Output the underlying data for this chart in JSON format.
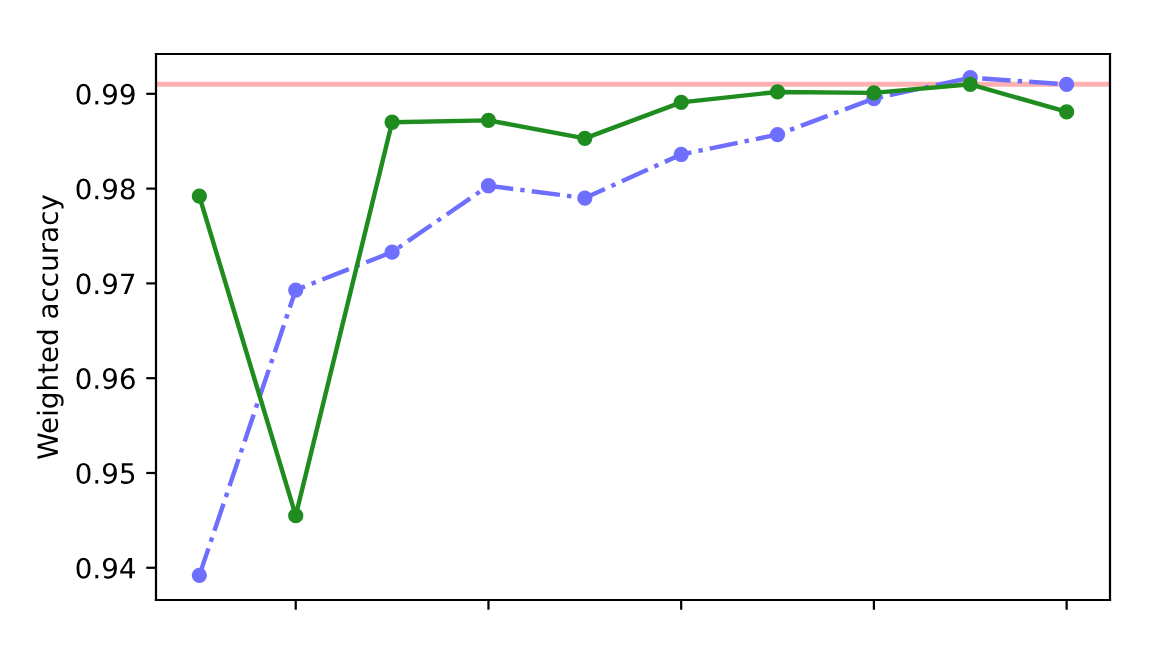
{
  "chart_data": {
    "type": "line",
    "ylabel": "Weighted accuracy",
    "categories": [
      null,
      null,
      null,
      null,
      null,
      null,
      null,
      null,
      null,
      null
    ],
    "series": [
      {
        "color": "#6f6fff",
        "line_style": "dashdot",
        "values": [
          0.9392,
          0.9693,
          0.9733,
          0.9803,
          0.979,
          0.9836,
          0.9857,
          0.9895,
          0.9917,
          0.991
        ]
      },
      {
        "color": "#1f8c1f",
        "line_style": "solid",
        "values": [
          0.9792,
          0.9455,
          0.987,
          0.9872,
          0.9853,
          0.9891,
          0.9902,
          0.9901,
          0.991,
          0.9881
        ]
      }
    ],
    "marker": "circle",
    "ref_lines": [
      {
        "axis": "y",
        "value": 0.991,
        "label": null,
        "color": "#ffb0b0",
        "line_style": "solid"
      }
    ],
    "ylim": [
      0.9366,
      0.9942
    ],
    "yticks": [
      0.94,
      0.95,
      0.96,
      0.97,
      0.98,
      0.99
    ],
    "grid": false,
    "legend": false
  }
}
